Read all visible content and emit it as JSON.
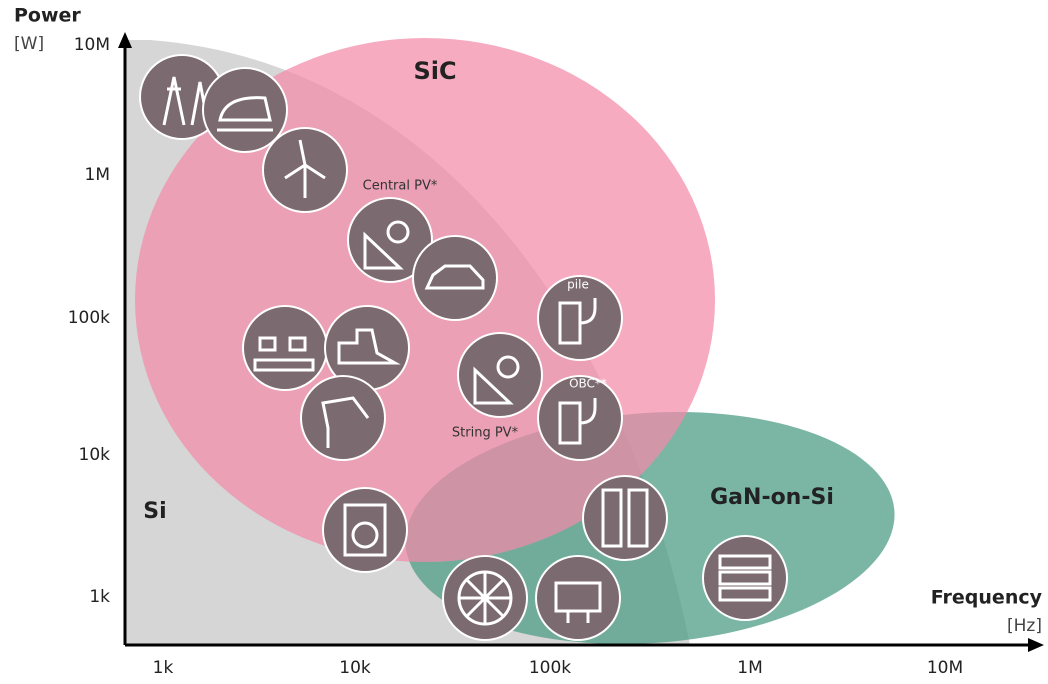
{
  "axes": {
    "y_title": "Power",
    "y_unit": "[W]",
    "x_title": "Frequency",
    "x_unit": "[Hz]",
    "y_ticks": [
      "10M",
      "1M",
      "100k",
      "10k",
      "1k"
    ],
    "x_ticks": [
      "1k",
      "10k",
      "100k",
      "1M",
      "10M"
    ]
  },
  "regions": [
    {
      "label": "SiC"
    },
    {
      "label": "Si"
    },
    {
      "label": "GaN-on-Si"
    }
  ],
  "icon_labels": [
    "Central PV*",
    "String PV*",
    "pile",
    "OBC**"
  ]
}
